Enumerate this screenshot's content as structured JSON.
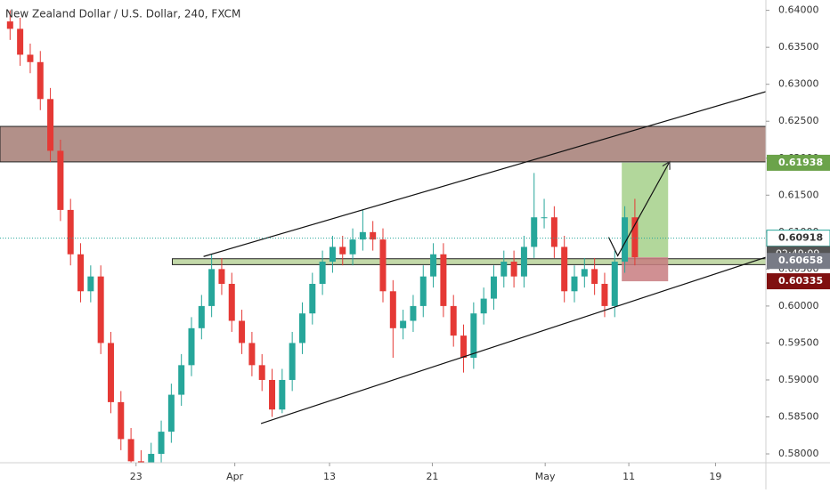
{
  "chart_data": {
    "type": "candlestick",
    "title": "New Zealand Dollar / U.S. Dollar, 240, FXCM",
    "xlim": [
      0,
      76
    ],
    "xticks": [
      {
        "value": 13.5,
        "label": "23"
      },
      {
        "value": 23.3,
        "label": "Apr"
      },
      {
        "value": 32.7,
        "label": "13"
      },
      {
        "value": 42.9,
        "label": "21"
      },
      {
        "value": 54.1,
        "label": "May"
      },
      {
        "value": 62.4,
        "label": "11"
      },
      {
        "value": 71,
        "label": "19"
      }
    ],
    "ylim": [
      0.5788,
      0.6414
    ],
    "yticks": [
      {
        "value": 0.58,
        "label": "0.58000"
      },
      {
        "value": 0.585,
        "label": "0.58500"
      },
      {
        "value": 0.59,
        "label": "0.59000"
      },
      {
        "value": 0.595,
        "label": "0.59500"
      },
      {
        "value": 0.6,
        "label": "0.60000"
      },
      {
        "value": 0.605,
        "label": "0.60500"
      },
      {
        "value": 0.61,
        "label": "0.61000"
      },
      {
        "value": 0.615,
        "label": "0.61500"
      },
      {
        "value": 0.62,
        "label": "0.62000"
      },
      {
        "value": 0.625,
        "label": "0.62500"
      },
      {
        "value": 0.63,
        "label": "0.63000"
      },
      {
        "value": 0.635,
        "label": "0.63500"
      },
      {
        "value": 0.64,
        "label": "0.64000"
      }
    ],
    "up_color": "#26a69a",
    "down_color": "#e53935",
    "x": [
      1,
      2,
      3,
      4,
      5,
      6,
      7,
      8,
      9,
      10,
      11,
      12,
      13,
      14,
      15,
      16,
      17,
      18,
      19,
      20,
      21,
      22,
      23,
      24,
      25,
      26,
      27,
      28,
      29,
      30,
      31,
      32,
      33,
      34,
      35,
      36,
      37,
      38,
      39,
      40,
      41,
      42,
      43,
      44,
      45,
      46,
      47,
      48,
      49,
      50,
      51,
      52,
      53,
      54,
      55,
      56,
      57,
      58,
      59,
      60,
      61,
      62,
      63
    ],
    "open": [
      0.6385,
      0.6375,
      0.634,
      0.633,
      0.628,
      0.621,
      0.613,
      0.607,
      0.602,
      0.604,
      0.595,
      0.587,
      0.582,
      0.579,
      0.578,
      0.58,
      0.583,
      0.588,
      0.592,
      0.597,
      0.6,
      0.605,
      0.603,
      0.598,
      0.595,
      0.592,
      0.59,
      0.586,
      0.59,
      0.595,
      0.599,
      0.603,
      0.606,
      0.608,
      0.607,
      0.609,
      0.61,
      0.609,
      0.602,
      0.597,
      0.598,
      0.6,
      0.604,
      0.607,
      0.6,
      0.596,
      0.593,
      0.599,
      0.601,
      0.604,
      0.606,
      0.604,
      0.608,
      0.612,
      0.612,
      0.608,
      0.602,
      0.604,
      0.605,
      0.603,
      0.6,
      0.606,
      0.612
    ],
    "high": [
      0.64,
      0.639,
      0.6355,
      0.6345,
      0.6295,
      0.6225,
      0.6145,
      0.6085,
      0.6055,
      0.6055,
      0.5965,
      0.5885,
      0.5835,
      0.5805,
      0.5815,
      0.5845,
      0.5895,
      0.5935,
      0.5985,
      0.6015,
      0.607,
      0.6065,
      0.6045,
      0.5995,
      0.5965,
      0.5935,
      0.5915,
      0.5915,
      0.5965,
      0.6005,
      0.6045,
      0.6075,
      0.6095,
      0.6095,
      0.6105,
      0.613,
      0.6115,
      0.6105,
      0.6035,
      0.5995,
      0.6015,
      0.6055,
      0.6085,
      0.6085,
      0.6015,
      0.5975,
      0.6005,
      0.6025,
      0.6055,
      0.6075,
      0.6075,
      0.6095,
      0.618,
      0.6145,
      0.6135,
      0.6095,
      0.6055,
      0.6065,
      0.6065,
      0.6045,
      0.6075,
      0.6135,
      0.6145
    ],
    "low": [
      0.636,
      0.6325,
      0.6315,
      0.6265,
      0.6195,
      0.6115,
      0.6055,
      0.6005,
      0.6005,
      0.5935,
      0.5855,
      0.5805,
      0.578,
      0.5775,
      0.5775,
      0.5785,
      0.5815,
      0.5865,
      0.5905,
      0.5955,
      0.5985,
      0.6015,
      0.5965,
      0.5935,
      0.5905,
      0.5885,
      0.585,
      0.5855,
      0.5885,
      0.5935,
      0.5975,
      0.6015,
      0.6045,
      0.6055,
      0.6055,
      0.6075,
      0.6075,
      0.6005,
      0.593,
      0.5955,
      0.5965,
      0.5985,
      0.6025,
      0.5985,
      0.5945,
      0.591,
      0.5915,
      0.5975,
      0.5995,
      0.6025,
      0.6025,
      0.6025,
      0.6065,
      0.6105,
      0.6065,
      0.6005,
      0.6005,
      0.6025,
      0.6015,
      0.5985,
      0.5985,
      0.6045,
      0.6055
    ],
    "close": [
      0.6375,
      0.634,
      0.633,
      0.628,
      0.621,
      0.613,
      0.607,
      0.602,
      0.604,
      0.595,
      0.587,
      0.582,
      0.579,
      0.578,
      0.58,
      0.583,
      0.588,
      0.592,
      0.597,
      0.6,
      0.605,
      0.603,
      0.598,
      0.595,
      0.592,
      0.59,
      0.586,
      0.59,
      0.595,
      0.599,
      0.603,
      0.606,
      0.608,
      0.607,
      0.609,
      0.61,
      0.609,
      0.602,
      0.597,
      0.598,
      0.6,
      0.604,
      0.607,
      0.6,
      0.596,
      0.593,
      0.599,
      0.601,
      0.604,
      0.606,
      0.604,
      0.608,
      0.612,
      0.612,
      0.608,
      0.602,
      0.604,
      0.605,
      0.603,
      0.6,
      0.606,
      0.612,
      0.6066
    ],
    "zones": [
      {
        "x": [
          0,
          76
        ],
        "y": [
          0.6195,
          0.6243
        ],
        "color": "#a57d74"
      },
      {
        "x": [
          17.1,
          76
        ],
        "y": [
          0.6056,
          0.6064
        ],
        "color": "#b9d29a"
      },
      {
        "x": [
          61.7,
          66.3
        ],
        "y": [
          0.6066,
          0.6194
        ],
        "color": "#a5d08a"
      },
      {
        "x": [
          61.7,
          66.3
        ],
        "y": [
          0.60335,
          0.6066
        ],
        "color": "#c87c80"
      }
    ],
    "trendlines": [
      {
        "x": [
          20.2,
          76
        ],
        "y": [
          0.6067,
          0.629
        ]
      },
      {
        "x": [
          25.9,
          76
        ],
        "y": [
          0.5841,
          0.6066
        ]
      },
      {
        "x": [
          60.4,
          61.3,
          66.4
        ],
        "y": [
          0.6093,
          0.6068,
          0.6194
        ]
      }
    ],
    "last_price": {
      "value": 0.60918,
      "countdown": "02:49:09",
      "color": "#26a69a"
    },
    "price_labels": [
      {
        "value": 0.61938,
        "color": "#6ba34a"
      },
      {
        "value": 0.60658,
        "color": "#787b86"
      },
      {
        "value": 0.60335,
        "color": "#801010"
      }
    ]
  }
}
